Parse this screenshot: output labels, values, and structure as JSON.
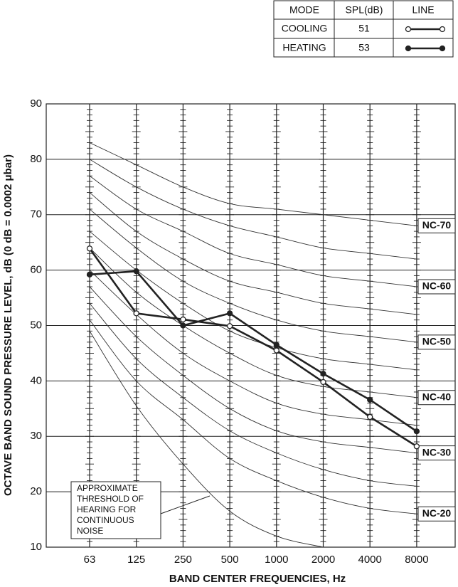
{
  "chart_data": {
    "type": "line",
    "categories": [
      "63",
      "125",
      "250",
      "500",
      "1000",
      "2000",
      "4000",
      "8000"
    ],
    "ylim": [
      10,
      90
    ],
    "yticks": [
      10,
      20,
      30,
      40,
      50,
      60,
      70,
      80,
      90
    ],
    "grid": true,
    "x_label": "BAND CENTER FREQUENCIES, Hz",
    "y_label": "OCTAVE BAND SOUND PRESSURE LEVEL, dB (0 dB = 0.0002 μbar)",
    "legend_headers": [
      "MODE",
      "SPL(dB)",
      "LINE"
    ],
    "series": [
      {
        "name": "COOLING",
        "spl": 51,
        "color": "#222222",
        "marker": "open",
        "values": [
          63.9,
          52.2,
          51.1,
          49.9,
          45.5,
          39.8,
          33.5,
          28.2
        ]
      },
      {
        "name": "HEATING",
        "spl": 53,
        "color": "#222222",
        "marker": "filled",
        "values": [
          59.2,
          59.8,
          50.0,
          52.2,
          46.5,
          41.3,
          36.6,
          30.9
        ]
      }
    ],
    "nc_curves": [
      {
        "label": "NC-70",
        "values": [
          83,
          79,
          75,
          72,
          71,
          70,
          69,
          68
        ]
      },
      {
        "label": null,
        "values": [
          80,
          75,
          71,
          68,
          66,
          64,
          63,
          62
        ]
      },
      {
        "label": "NC-60",
        "values": [
          77,
          71,
          67,
          63,
          61,
          59,
          58,
          57
        ]
      },
      {
        "label": null,
        "values": [
          74,
          67,
          62,
          58,
          56,
          54,
          53,
          52
        ]
      },
      {
        "label": "NC-50",
        "values": [
          71,
          64,
          58,
          54,
          51,
          49,
          48,
          47
        ]
      },
      {
        "label": null,
        "values": [
          67,
          60,
          54,
          49,
          46,
          44,
          43,
          42
        ]
      },
      {
        "label": "NC-40",
        "values": [
          64,
          56,
          50,
          45,
          41,
          39,
          38,
          37
        ]
      },
      {
        "label": null,
        "values": [
          60,
          52,
          45,
          40,
          36,
          34,
          33,
          32
        ]
      },
      {
        "label": "NC-30",
        "values": [
          57,
          48,
          41,
          35,
          31,
          29,
          28,
          27
        ]
      },
      {
        "label": null,
        "values": [
          54,
          44,
          37,
          31,
          27,
          24,
          22,
          21
        ]
      },
      {
        "label": "NC-20",
        "values": [
          51,
          40,
          33,
          26,
          22,
          19,
          17,
          16
        ]
      }
    ],
    "threshold_curve": [
      49,
      35.5,
      25,
      16.5,
      12,
      10,
      null,
      null
    ],
    "annotation_lines": [
      "APPROXIMATE",
      "THRESHOLD OF",
      "HEARING FOR",
      "CONTINUOUS",
      "NOISE"
    ]
  }
}
